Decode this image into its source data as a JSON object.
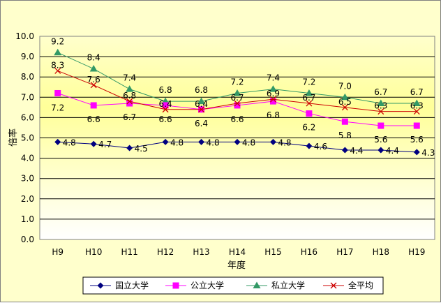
{
  "chart_data": {
    "type": "line",
    "categories": [
      "H9",
      "H10",
      "H11",
      "H12",
      "H13",
      "H14",
      "H15",
      "H16",
      "H17",
      "H18",
      "H19"
    ],
    "series": [
      {
        "name": "国立大学",
        "color": "#000080",
        "marker": "diamond",
        "values": [
          4.8,
          4.7,
          4.5,
          4.8,
          4.8,
          4.8,
          4.8,
          4.6,
          4.4,
          4.4,
          4.3
        ],
        "labels": [
          "4.8",
          "4.7",
          "4.5",
          "4.8",
          "4.8",
          "4.8",
          "4.8",
          "4.6",
          "4.4",
          "4.4",
          "4.3"
        ]
      },
      {
        "name": "公立大学",
        "color": "#ff00ff",
        "marker": "square",
        "values": [
          7.2,
          6.6,
          6.7,
          6.6,
          6.4,
          6.6,
          6.8,
          6.2,
          5.8,
          5.6,
          5.6
        ],
        "labels": [
          "7.2",
          "6.6",
          "6.7",
          "6.6",
          "6.4",
          "6.6",
          "6.8",
          "6.2",
          "5.8",
          "5.6",
          "5.6"
        ]
      },
      {
        "name": "私立大学",
        "color": "#339966",
        "marker": "triangle",
        "values": [
          9.2,
          8.4,
          7.4,
          6.8,
          6.8,
          7.2,
          7.4,
          7.2,
          7.0,
          6.7,
          6.7
        ],
        "labels": [
          "9.2",
          "8.4",
          "7.4",
          "6.8",
          "6.8",
          "7.2",
          "7.4",
          "7.2",
          "7.0",
          "6.7",
          "6.7"
        ]
      },
      {
        "name": "全平均",
        "color": "#cc0000",
        "marker": "x",
        "values": [
          8.3,
          7.6,
          6.8,
          6.4,
          6.4,
          6.7,
          6.9,
          6.7,
          6.5,
          6.3,
          6.3
        ],
        "labels": [
          "8.3",
          "7.6",
          "6.8",
          "6.4",
          "6.4",
          "6.7",
          "6.9",
          "6.7",
          "6.5",
          "6.3",
          "6.3"
        ]
      }
    ],
    "xlabel": "年度",
    "ylabel": "倍率",
    "ylim": [
      0,
      10
    ],
    "yticks": [
      "0.0",
      "1.0",
      "2.0",
      "3.0",
      "4.0",
      "5.0",
      "6.0",
      "7.0",
      "8.0",
      "9.0",
      "10.0"
    ],
    "grid": true,
    "plot_background": "yellow-to-white gradient",
    "legend_position": "bottom"
  }
}
